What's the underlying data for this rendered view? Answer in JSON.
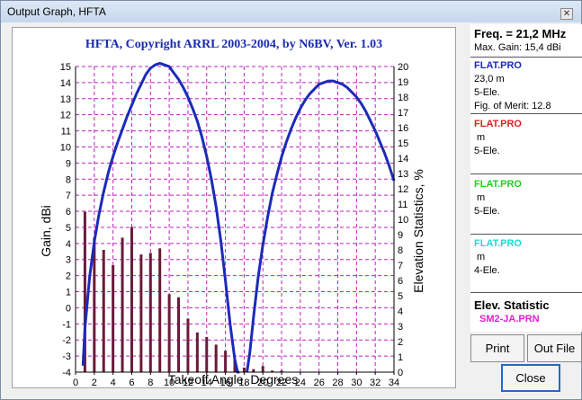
{
  "window": {
    "title": "Output Graph, HFTA",
    "close_glyph": "✕"
  },
  "chart_data": {
    "type": "bar+line",
    "title": "HFTA, Copyright ARRL 2003-2004, by N6BV, Ver. 1.03",
    "xlabel": "Takeoff Angle, Degrees",
    "ylabel_left": "Gain, dBi",
    "ylabel_right": "Elevation Statistics, %",
    "xlim": [
      0,
      34
    ],
    "ylim_left": [
      -4,
      15
    ],
    "ylim_right": [
      0,
      20
    ],
    "grid": true,
    "x_ticks": [
      "0",
      "2",
      "4",
      "6",
      "8",
      "10",
      "12",
      "14",
      "16",
      "18",
      "20",
      "22",
      "24",
      "26",
      "28",
      "30",
      "32",
      "34"
    ],
    "y_left_ticks": [
      "15",
      "14",
      "13",
      "12",
      "11",
      "10",
      "9",
      "8",
      "7",
      "6",
      "5",
      "4",
      "3",
      "2",
      "1",
      "0",
      "-1",
      "-2",
      "-3",
      "-4"
    ],
    "y_right_ticks": [
      "20",
      "19",
      "18",
      "17",
      "16",
      "15",
      "14",
      "13",
      "12",
      "11",
      "10",
      "9",
      "8",
      "7",
      "6",
      "5",
      "4",
      "3",
      "2",
      "1",
      "0"
    ],
    "elevation_statistics": {
      "color": "#6a1a3a",
      "x": [
        1,
        2,
        3,
        4,
        5,
        6,
        7,
        8,
        9,
        10,
        11,
        12,
        13,
        14,
        15,
        16,
        17,
        18,
        19,
        20,
        21,
        22
      ],
      "values": [
        10.5,
        8.8,
        8.0,
        7.0,
        8.8,
        9.5,
        7.7,
        7.8,
        8.1,
        5.1,
        4.9,
        3.5,
        2.6,
        2.3,
        1.8,
        1.4,
        0.8,
        0.3,
        0.2,
        0.4,
        0.1,
        0.1
      ]
    },
    "gain_series": [
      {
        "color": "#1c2bb8",
        "x": [
          0.8,
          1,
          1.5,
          2,
          2.5,
          3,
          3.5,
          4,
          4.5,
          5,
          5.5,
          6,
          6.5,
          7,
          7.5,
          8,
          8.5,
          9,
          9.5,
          10,
          10.5,
          11,
          11.5,
          12,
          12.5,
          13,
          13.5,
          14,
          14.5,
          15,
          15.5,
          16,
          16.5,
          17,
          17.3,
          17.5
        ],
        "y": [
          -3.6,
          -1.3,
          1.9,
          4.1,
          5.8,
          7.2,
          8.4,
          9.4,
          10.3,
          11.1,
          11.9,
          12.6,
          13.3,
          13.9,
          14.5,
          14.9,
          15.1,
          15.2,
          15.1,
          15.0,
          14.6,
          14.2,
          13.7,
          13.1,
          12.4,
          11.6,
          10.6,
          9.4,
          8.0,
          6.3,
          4.2,
          1.7,
          -1.0,
          -3.2,
          -4,
          -4
        ]
      },
      {
        "color": "#1c2bb8",
        "x": [
          18.3,
          18.6,
          19,
          19.5,
          20,
          20.5,
          21,
          21.5,
          22,
          22.5,
          23,
          23.5,
          24,
          24.5,
          25,
          25.5,
          26,
          26.5,
          27,
          27.5,
          28,
          28.5,
          29,
          29.5,
          30,
          30.5,
          31,
          31.5,
          32,
          32.5,
          33,
          33.5,
          34
        ],
        "y": [
          -4,
          -2.8,
          -0.6,
          1.9,
          3.9,
          5.6,
          7.1,
          8.3,
          9.4,
          10.3,
          11.1,
          11.8,
          12.4,
          12.9,
          13.3,
          13.6,
          13.9,
          14.0,
          14.1,
          14.1,
          14.0,
          13.9,
          13.7,
          13.4,
          13.1,
          12.7,
          12.2,
          11.6,
          11.0,
          10.3,
          9.6,
          8.8,
          7.9
        ]
      }
    ]
  },
  "panel": {
    "freq": "Freq. = 21,2 MHz",
    "max_gain": "Max. Gain: 15,4 dBi",
    "profiles": [
      {
        "name": "FLAT.PRO",
        "color": "#1c2bb8",
        "height": "23,0 m",
        "antenna": "5-Ele.",
        "merit": "Fig. of Merit:  12.8"
      },
      {
        "name": "FLAT.PRO",
        "color": "#e02020",
        "height": " m",
        "antenna": "5-Ele."
      },
      {
        "name": "FLAT.PRO",
        "color": "#20d020",
        "height": " m",
        "antenna": "5-Ele."
      },
      {
        "name": "FLAT.PRO",
        "color": "#20d8d8",
        "height": " m",
        "antenna": "4-Ele."
      }
    ],
    "elev_title": "Elev. Statistic",
    "elev_file": "SM2-JA.PRN"
  },
  "buttons": {
    "print": "Print",
    "out_file": "Out File",
    "close": "Close"
  }
}
